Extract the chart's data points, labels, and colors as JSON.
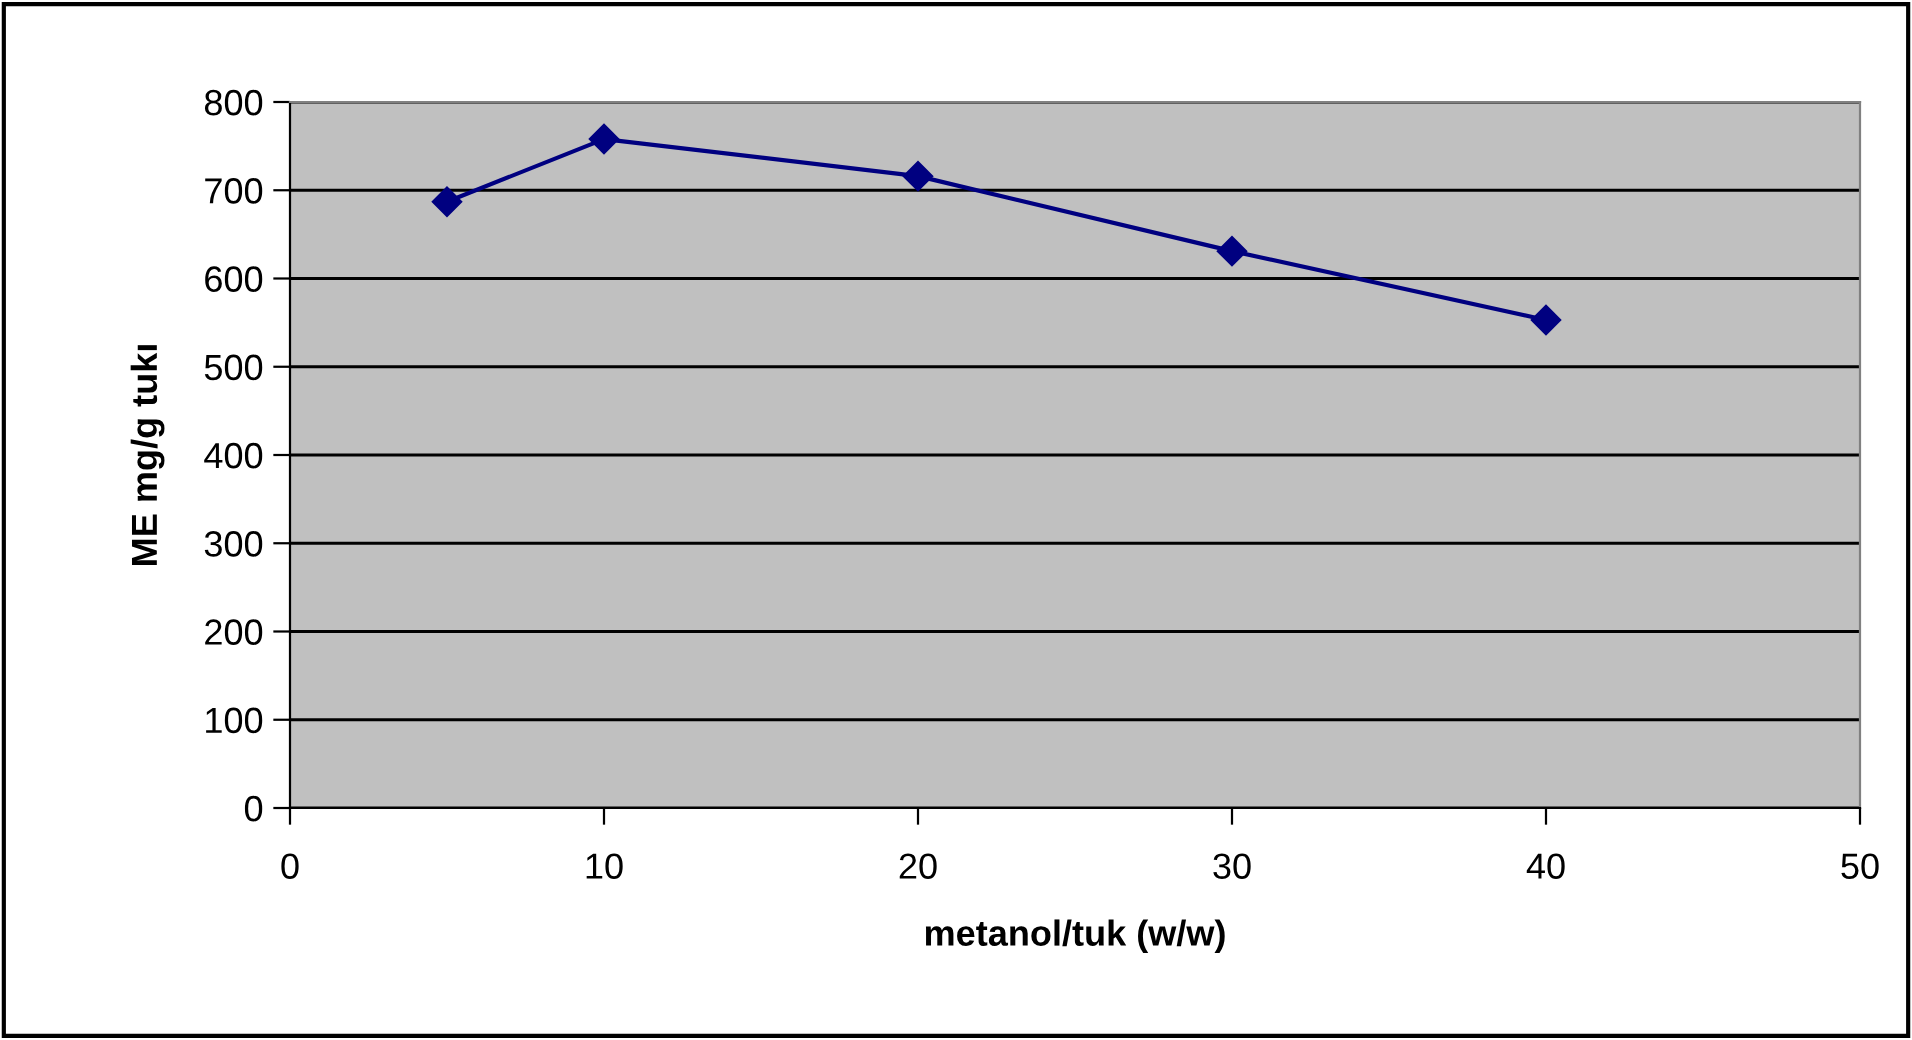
{
  "chart_data": {
    "type": "line",
    "xlabel": "metanol/tuk (w/w)",
    "ylabel": "ME mg/g tukı",
    "x": [
      5,
      10,
      20,
      30,
      40
    ],
    "series": [
      {
        "color": "#000080",
        "values": [
          687,
          758,
          716,
          631,
          553
        ]
      }
    ],
    "xlim": [
      0,
      50
    ],
    "xticks": [
      0,
      10,
      20,
      30,
      40,
      50
    ],
    "ylim": [
      0,
      800
    ],
    "yticks": [
      0,
      100,
      200,
      300,
      400,
      500,
      600,
      700,
      800
    ],
    "grid": "y",
    "marker": "diamond",
    "line_style": "solid",
    "legend": false
  }
}
